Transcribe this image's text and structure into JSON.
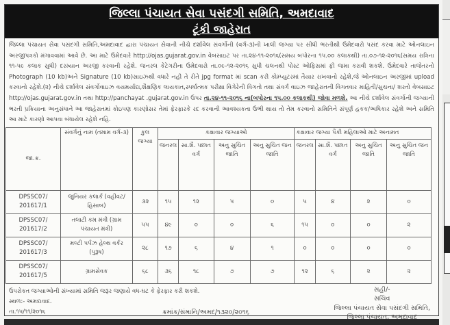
{
  "header": {
    "title": "જિલ્લા પંચાયત સેવા પસંદગી સમિતિ, અમદાવાદ",
    "subtitle": "ટૂંકી જાહેરાત"
  },
  "body": {
    "para1": "જિલ્લા પંચાયત સેવા પસંદગી સમિતિ,અમદાવાદ દ્વારા પંચાયત સેવાની નીચે દર્શાવેલ સંવર્ગોની (વર્ગ-૩)ની ખાલી જગ્યા પર સીધી ભરતીથી ઉમેદવારો પસંદ કરવા માટે ઓનલાઇન અરજીપત્રકો મંગાવવામાં આવે છે. આ માટે ઉમેદવારે http://ojas.gujarat.gov.in વેબસાઇટ પર તા.૨૪-૧૧-૨૦૧૬(સમય બપોરના ૧૫.૦૦ કલાકથી) તા.૦૭-૧૨-૨૦૧૬(સમય રાત્રિના ૧૧-૫૯ કલાક સુધી) દરમ્યાન અરજી કરવાની રહેશે. જનરલ કેટેગરીના ઉમેદવારો તા.૦૯-૧૨-૨૦૧૬ સુધી ચલનથી પોસ્ટ ઓફિસમાં ફી જમા કરાવી શકશે. ઉમેદવારે તાજેતરનો Photograph (10 kb)અને Signature (10 kb)સાઇઝથી વધારે નહી તે રીતે jpg format માં scan કરી કોમ્પ્યુટરમાં તૈયાર રાખવાનો રહેશે,જે ઓનલાઇન અરજીમાં upload કરવાનો રહેશે.(૨) નીચે દર્શાવેલ સંવર્ગોવાઇઝ વયમર્યાદા,શૈક્ષણિક લાયકાત,સ્પર્ધાત્મક પરીક્ષા વિગેરેની વિગતો તથા સંવર્ગ વાઇઝ જાહેરાતની વિગતવાર માહિતી/સુચના/ શરતો વેબસાઇટ http://ojas.gujarat.gov.in તથા http://panchayat .gujarat.gov.in ઉપર",
    "highlight": "તા.૨૪-૧૧-૨૦૧૬ ના(બપોરના ૧૫.૦૦ કલાકથી) જોવા મળશે.",
    "para2": "આ નીચે દર્શાવેલ સંવર્ગોની જગ્યાની ભરતી પ્રક્રિયાના અનુસંધાને આ જાહેરાતમાં કોઇપણ કારણોસર તેમાં ફેરફારકે રદ કરવાની આવશ્યકતા ઉભી થાય તો તેમ કરવાનો સમિતિને સંપૂર્ણ હકક/અધિકાર રહેશે અને સમિતિ આ માટે કારણો આપવા બંધાયેલ રહેશે નહિ."
  },
  "table": {
    "headers": {
      "code": "જા.ક્ર.",
      "name": "સંવર્ગનું નામ (તમામ વર્ગ-૩)",
      "total": "કુલ જગ્યા",
      "category_group": "કક્ષાવાર જગ્યાઓ",
      "women_group": "કક્ષાવાર જગ્યા પૈકી મહિલાઓ માટે અનામત",
      "sub": [
        "જનરલ",
        "સા.શૈ. પછાત વર્ગ",
        "અનુ સુચિત જાતિ",
        "અનુ સુચિત જન જાતિ",
        "જનરલ",
        "સા.શૈ. પછાત વર્ગ",
        "અનુ સુચિત જાતિ",
        "અનુ સુચિત જન જાતિ"
      ]
    },
    "rows": [
      {
        "code": "DPSSC07/ 201617/1",
        "name": "જુનિયર કલાર્ક (વહીવટ/હિસાબ)",
        "total": "૩૨",
        "vals": [
          "૧૫",
          "૧૨",
          "૫",
          "૦",
          "૫",
          "૪",
          "૨",
          "૦"
        ]
      },
      {
        "code": "DPSSC07/ 201617/2",
        "name": "તલાટી કમ મંત્રી (ગ્રામ પંચાયત મંત્રી)",
        "total": "૫૫",
        "vals": [
          "૪૯",
          "૦",
          "૦",
          "૬",
          "૧૫",
          "૦",
          "૦",
          "૨"
        ]
      },
      {
        "code": "DPSSC07/ 201617/3",
        "name": "મલ્ટી પર્પઝ હેલ્થ વર્કર (પુરૂષ)",
        "total": "૨૮",
        "vals": [
          "૧૭",
          "૬",
          "૪",
          "૧",
          "૦",
          "૦",
          "૦",
          "૦"
        ]
      },
      {
        "code": "DPSSC07/ 201617/5",
        "name": "ગ્રામસેવક",
        "total": "૬૮",
        "vals": [
          "૩૬",
          "૧૮",
          "૭",
          "૭",
          "૧૨",
          "૬",
          "૨",
          "૨"
        ]
      }
    ]
  },
  "footer": {
    "note": "ઉપરોકત જગ્યાઓની સંખ્યામાં સમિતિ જરૂર જણાયે વધ-ઘટ કે ફેરફાર કરી શકશે.",
    "place": "સ્થળ:- અમદાવાદ.",
    "date": "તા.૧૫/૧૧/૨૦૧૬",
    "ref": "ક્રમાંક/સંમાનિ/અમદ/૧૩૨૦/૨૦૧૬",
    "sign": [
      "સહી/-",
      "સચિવ",
      "જિલ્લા પંચાયત સેવા પસંદગી સમિતિ,",
      "જિલ્લા પંચાયત, અમદાવાદ"
    ]
  }
}
